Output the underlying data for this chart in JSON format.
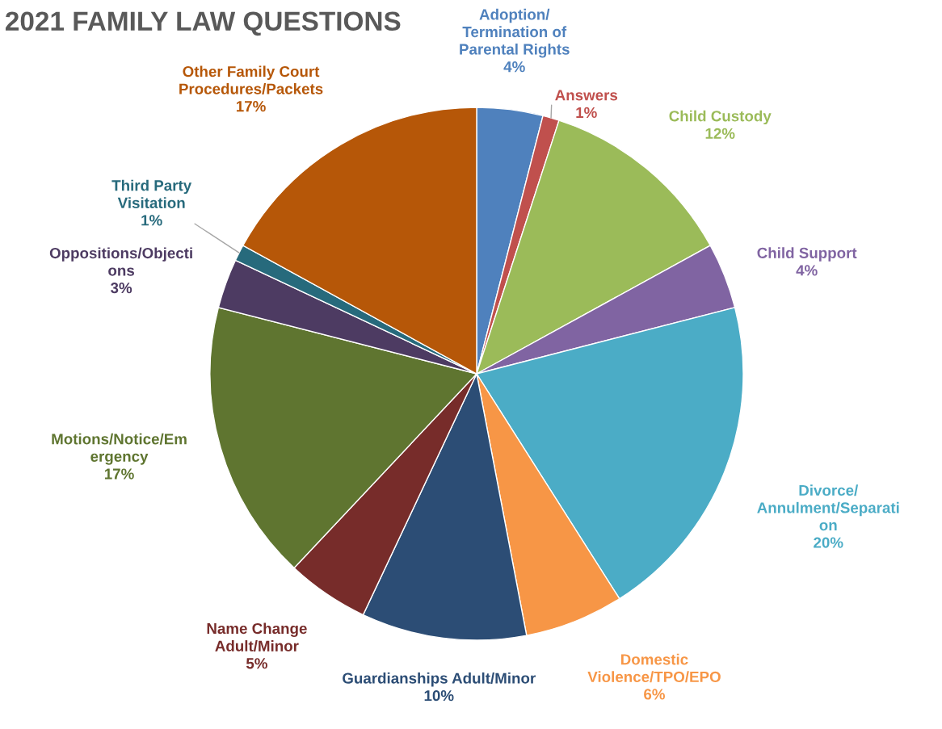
{
  "chart_data": {
    "type": "pie",
    "title": "2021 FAMILY LAW QUESTIONS",
    "categories": [
      "Adoption/\nTermination of\nParental Rights",
      "Answers",
      "Child Custody",
      "Child Support",
      "Divorce/\nAnnulment/Separati\non",
      "Domestic\nViolence/TPO/EPO",
      "Guardianships Adult/Minor",
      "Name Change\nAdult/Minor",
      "Motions/Notice/Em\nergency",
      "Oppositions/Objecti\nons",
      "Third Party\nVisitation",
      "Other Family Court\nProcedures/Packets"
    ],
    "values": [
      4,
      1,
      12,
      4,
      20,
      6,
      10,
      5,
      17,
      3,
      1,
      17
    ],
    "value_labels": [
      "4%",
      "1%",
      "12%",
      "4%",
      "20%",
      "6%",
      "10%",
      "5%",
      "17%",
      "3%",
      "1%",
      "17%"
    ],
    "colors": [
      "#4f81bd",
      "#c0504d",
      "#9bbb59",
      "#8064a2",
      "#4bacc6",
      "#f79646",
      "#2c4d75",
      "#772c2a",
      "#5f7530",
      "#4d3b62",
      "#276a7c",
      "#b65708"
    ],
    "legend": false
  }
}
